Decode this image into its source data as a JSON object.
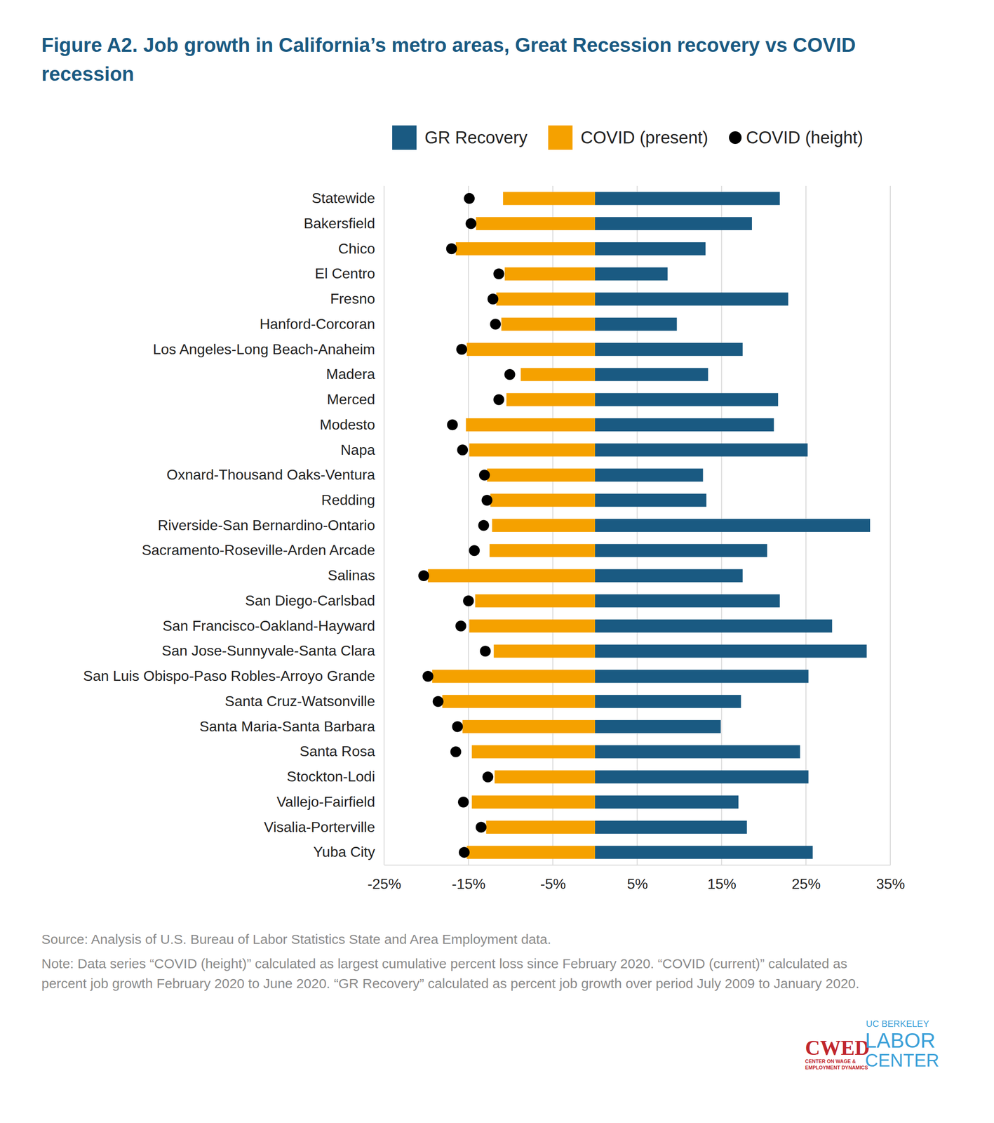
{
  "chart_data": {
    "type": "bar",
    "orientation": "horizontal",
    "title": "Figure A2. Job growth in California’s metro areas, Great Recession recovery vs COVID recession",
    "categories": [
      "Statewide",
      "Bakersfield",
      "Chico",
      "El Centro",
      "Fresno",
      "Hanford-Corcoran",
      "Los Angeles-Long Beach-Anaheim",
      "Madera",
      "Merced",
      "Modesto",
      "Napa",
      "Oxnard-Thousand Oaks-Ventura",
      "Redding",
      "Riverside-San Bernardino-Ontario",
      "Sacramento-Roseville-Arden Arcade",
      "Salinas",
      "San Diego-Carlsbad",
      "San Francisco-Oakland-Hayward",
      "San Jose-Sunnyvale-Santa Clara",
      "San Luis Obispo-Paso Robles-Arroyo Grande",
      "Santa Cruz-Watsonville",
      "Santa Maria-Santa Barbara",
      "Santa Rosa",
      "Stockton-Lodi",
      "Vallejo-Fairfield",
      "Visalia-Porterville",
      "Yuba City"
    ],
    "series": [
      {
        "name": "GR Recovery",
        "color": "#1a5a82",
        "values": [
          21.9,
          18.6,
          13.1,
          8.6,
          22.9,
          9.7,
          17.5,
          13.4,
          21.7,
          21.2,
          25.2,
          12.8,
          13.2,
          32.6,
          20.4,
          17.5,
          21.9,
          28.1,
          32.2,
          25.3,
          17.3,
          14.9,
          24.3,
          25.3,
          17.0,
          18.0,
          25.8
        ]
      },
      {
        "name": "COVID (present)",
        "color": "#f5a100",
        "values": [
          -10.9,
          -14.1,
          -16.5,
          -10.7,
          -11.7,
          -11.1,
          -15.2,
          -8.8,
          -10.5,
          -15.3,
          -14.9,
          -12.8,
          -12.4,
          -12.2,
          -12.5,
          -19.8,
          -14.2,
          -14.9,
          -12.0,
          -19.3,
          -18.1,
          -15.7,
          -14.6,
          -11.9,
          -14.6,
          -12.9,
          -15.2
        ]
      },
      {
        "name": "COVID (height)",
        "color": "#000000",
        "type": "scatter",
        "marker": "circle",
        "values": [
          -14.9,
          -14.7,
          -17.0,
          -11.4,
          -12.1,
          -11.8,
          -15.8,
          -10.1,
          -11.4,
          -16.9,
          -15.7,
          -13.1,
          -12.8,
          -13.2,
          -14.3,
          -20.3,
          -15.0,
          -15.9,
          -13.0,
          -19.8,
          -18.6,
          -16.3,
          -16.5,
          -12.7,
          -15.6,
          -13.5,
          -15.5
        ]
      }
    ],
    "xlim": [
      -25,
      35
    ],
    "xticks": [
      {
        "value": -25,
        "label": "-25%"
      },
      {
        "value": -15,
        "label": "-15%"
      },
      {
        "value": -5,
        "label": "-5%"
      },
      {
        "value": 5,
        "label": "5%"
      },
      {
        "value": 15,
        "label": "15%"
      },
      {
        "value": 25,
        "label": "25%"
      },
      {
        "value": 35,
        "label": "35%"
      }
    ],
    "grid": true,
    "legend": "top",
    "source": "Source: Analysis of U.S. Bureau of Labor Statistics State and Area Employment data.",
    "note": "Note: Data series “COVID (height)” calculated as largest cumulative percent loss since February 2020. “COVID (current)” calculated as percent job growth February 2020 to June 2020. “GR Recovery” calculated as percent job growth over period July 2009 to January 2020.",
    "logos": [
      "CWED",
      "CENTER ON WAGE &",
      "EMPLOYMENT DYNAMICS",
      "UC BERKELEY",
      "LABOR",
      "CENTER"
    ]
  }
}
